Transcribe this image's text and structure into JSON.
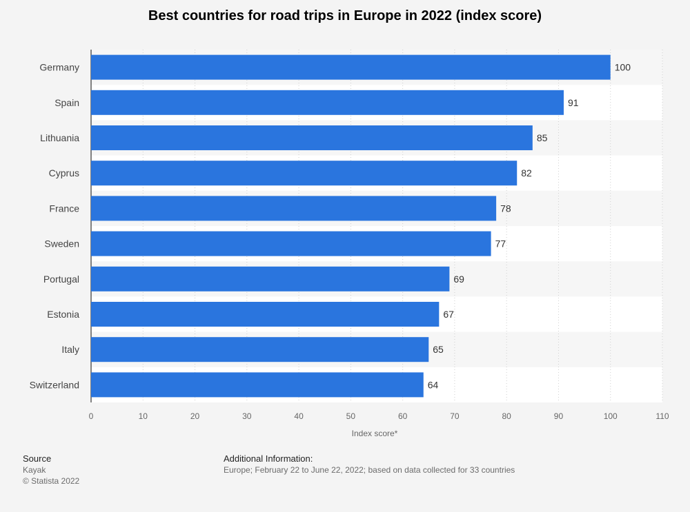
{
  "chart_data": {
    "type": "bar",
    "orientation": "horizontal",
    "title": "Best countries for road trips in Europe in 2022 (index score)",
    "categories": [
      "Germany",
      "Spain",
      "Lithuania",
      "Cyprus",
      "France",
      "Sweden",
      "Portugal",
      "Estonia",
      "Italy",
      "Switzerland"
    ],
    "values": [
      100,
      91,
      85,
      82,
      78,
      77,
      69,
      67,
      65,
      64
    ],
    "xlabel": "Index score*",
    "ylabel": "",
    "xlim": [
      0,
      110
    ],
    "xticks": [
      0,
      10,
      20,
      30,
      40,
      50,
      60,
      70,
      80,
      90,
      100,
      110
    ],
    "grid": true,
    "bar_color": "#2a75de"
  },
  "footer": {
    "source_heading": "Source",
    "source_name": "Kayak",
    "copyright": "© Statista 2022",
    "additional_heading": "Additional Information:",
    "additional_text": "Europe; February 22 to June 22, 2022; based on data collected for 33 countries"
  }
}
